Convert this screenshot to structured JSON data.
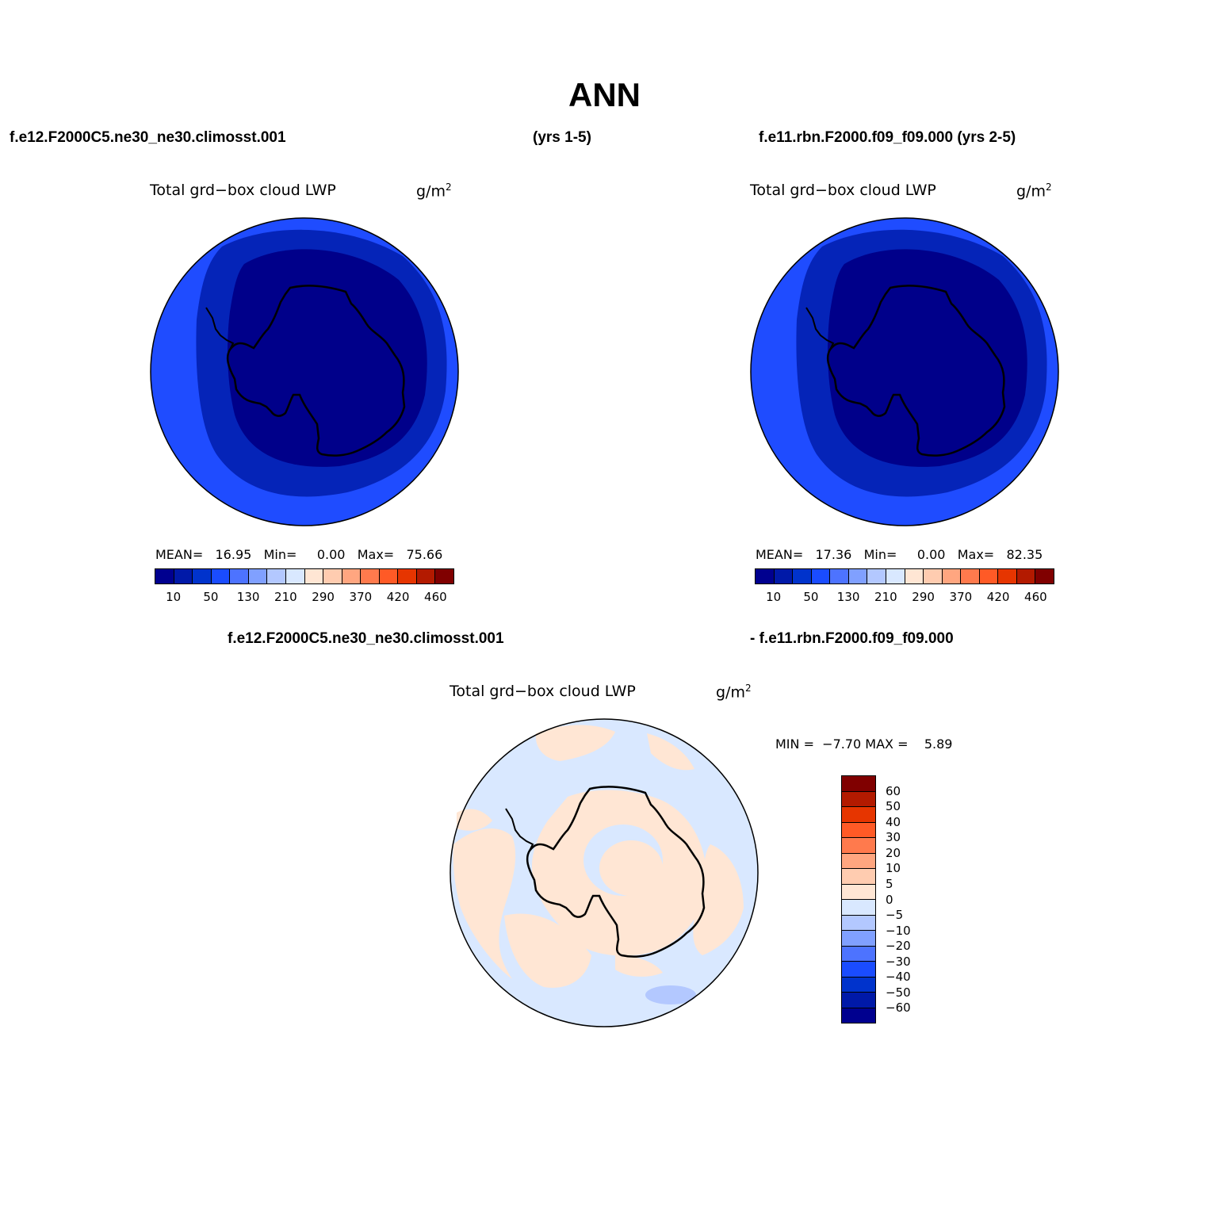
{
  "header": {
    "title": "ANN",
    "case1": "f.e12.F2000C5.ne30_ne30.climosst.001",
    "case1_years": "(yrs 1-5)",
    "case2": "f.e11.rbn.F2000.f09_f09.000 (yrs 2-5)",
    "diff_case1": "f.e12.F2000C5.ne30_ne30.climosst.001",
    "diff_case2": "- f.e11.rbn.F2000.f09_f09.000"
  },
  "panels": [
    {
      "variable": "Total grd−box cloud LWP",
      "units_base": "g/m",
      "units_exp": "2",
      "mean_label": "MEAN=",
      "mean": "16.95",
      "min_label": "Min=",
      "min": "0.00",
      "max_label": "Max=",
      "max": "75.66"
    },
    {
      "variable": "Total grd−box cloud LWP",
      "units_base": "g/m",
      "units_exp": "2",
      "mean_label": "MEAN=",
      "mean": "17.36",
      "min_label": "Min=",
      "min": "0.00",
      "max_label": "Max=",
      "max": "82.35"
    }
  ],
  "diff_panel": {
    "variable": "Total grd−box cloud LWP",
    "units_base": "g/m",
    "units_exp": "2",
    "min_label": "MIN =",
    "min": "−7.70",
    "max_label": "MAX =",
    "max": "5.89"
  },
  "colorbar_abs": {
    "colors": [
      "#00008f",
      "#0019a8",
      "#0033cc",
      "#1a4cff",
      "#4d73ff",
      "#80a0ff",
      "#b3c8ff",
      "#d9e8ff",
      "#ffe6d4",
      "#ffccb0",
      "#ffa680",
      "#ff7a4d",
      "#ff5a26",
      "#e63500",
      "#b31a00",
      "#800000"
    ],
    "tick_labels": [
      "10",
      "50",
      "130",
      "210",
      "290",
      "370",
      "420",
      "460"
    ]
  },
  "colorbar_diff": {
    "colors": [
      "#800000",
      "#b31a00",
      "#e63500",
      "#ff5a26",
      "#ff7a4d",
      "#ffa680",
      "#ffccb0",
      "#ffe6d4",
      "#d9e8ff",
      "#b3c8ff",
      "#80a0ff",
      "#4d73ff",
      "#1a4cff",
      "#0033cc",
      "#0019a8",
      "#00008f"
    ],
    "tick_labels": [
      "60",
      "50",
      "40",
      "30",
      "20",
      "10",
      "5",
      "0",
      "−5",
      "−10",
      "−20",
      "−30",
      "−40",
      "−50",
      "−60"
    ]
  },
  "map_colors": {
    "outer": "#1f4cff",
    "middle": "#0524b8",
    "inner": "#00008a",
    "diff_pos": "#ffe6d4",
    "diff_neg": "#d9e8ff",
    "diff_neg2": "#b3c8ff"
  }
}
